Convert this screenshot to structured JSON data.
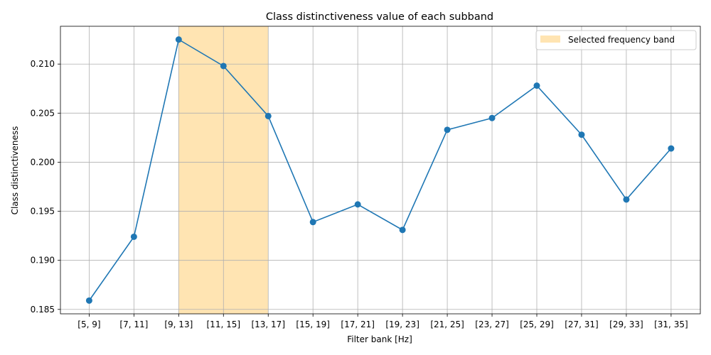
{
  "chart_data": {
    "type": "line",
    "title": "Class distinctiveness value of each subband",
    "xlabel": "Filter bank [Hz]",
    "ylabel": "Class distinctiveness",
    "categories": [
      "[5, 9]",
      "[7, 11]",
      "[9, 13]",
      "[11, 15]",
      "[13, 17]",
      "[15, 19]",
      "[17, 21]",
      "[19, 23]",
      "[21, 25]",
      "[23, 27]",
      "[25, 29]",
      "[27, 31]",
      "[29, 33]",
      "[31, 35]"
    ],
    "series": [
      {
        "values": [
          0.1859,
          0.1924,
          0.2125,
          0.2098,
          0.2047,
          0.1939,
          0.1957,
          0.1931,
          0.2033,
          0.2045,
          0.2078,
          0.2028,
          0.1962,
          0.2014
        ],
        "color": "#1f77b4",
        "marker": "circle"
      }
    ],
    "highlight": {
      "label": "Selected frequency band",
      "from_category": "[9, 13]",
      "to_category": "[13, 17]",
      "color": "#ffe4b2"
    },
    "ylim": [
      0.18455,
      0.21385
    ],
    "yticks": [
      "0.185",
      "0.190",
      "0.195",
      "0.200",
      "0.205",
      "0.210"
    ],
    "ytick_values": [
      0.185,
      0.19,
      0.195,
      0.2,
      0.205,
      0.21
    ],
    "grid": true,
    "legend_position": "top-right"
  }
}
